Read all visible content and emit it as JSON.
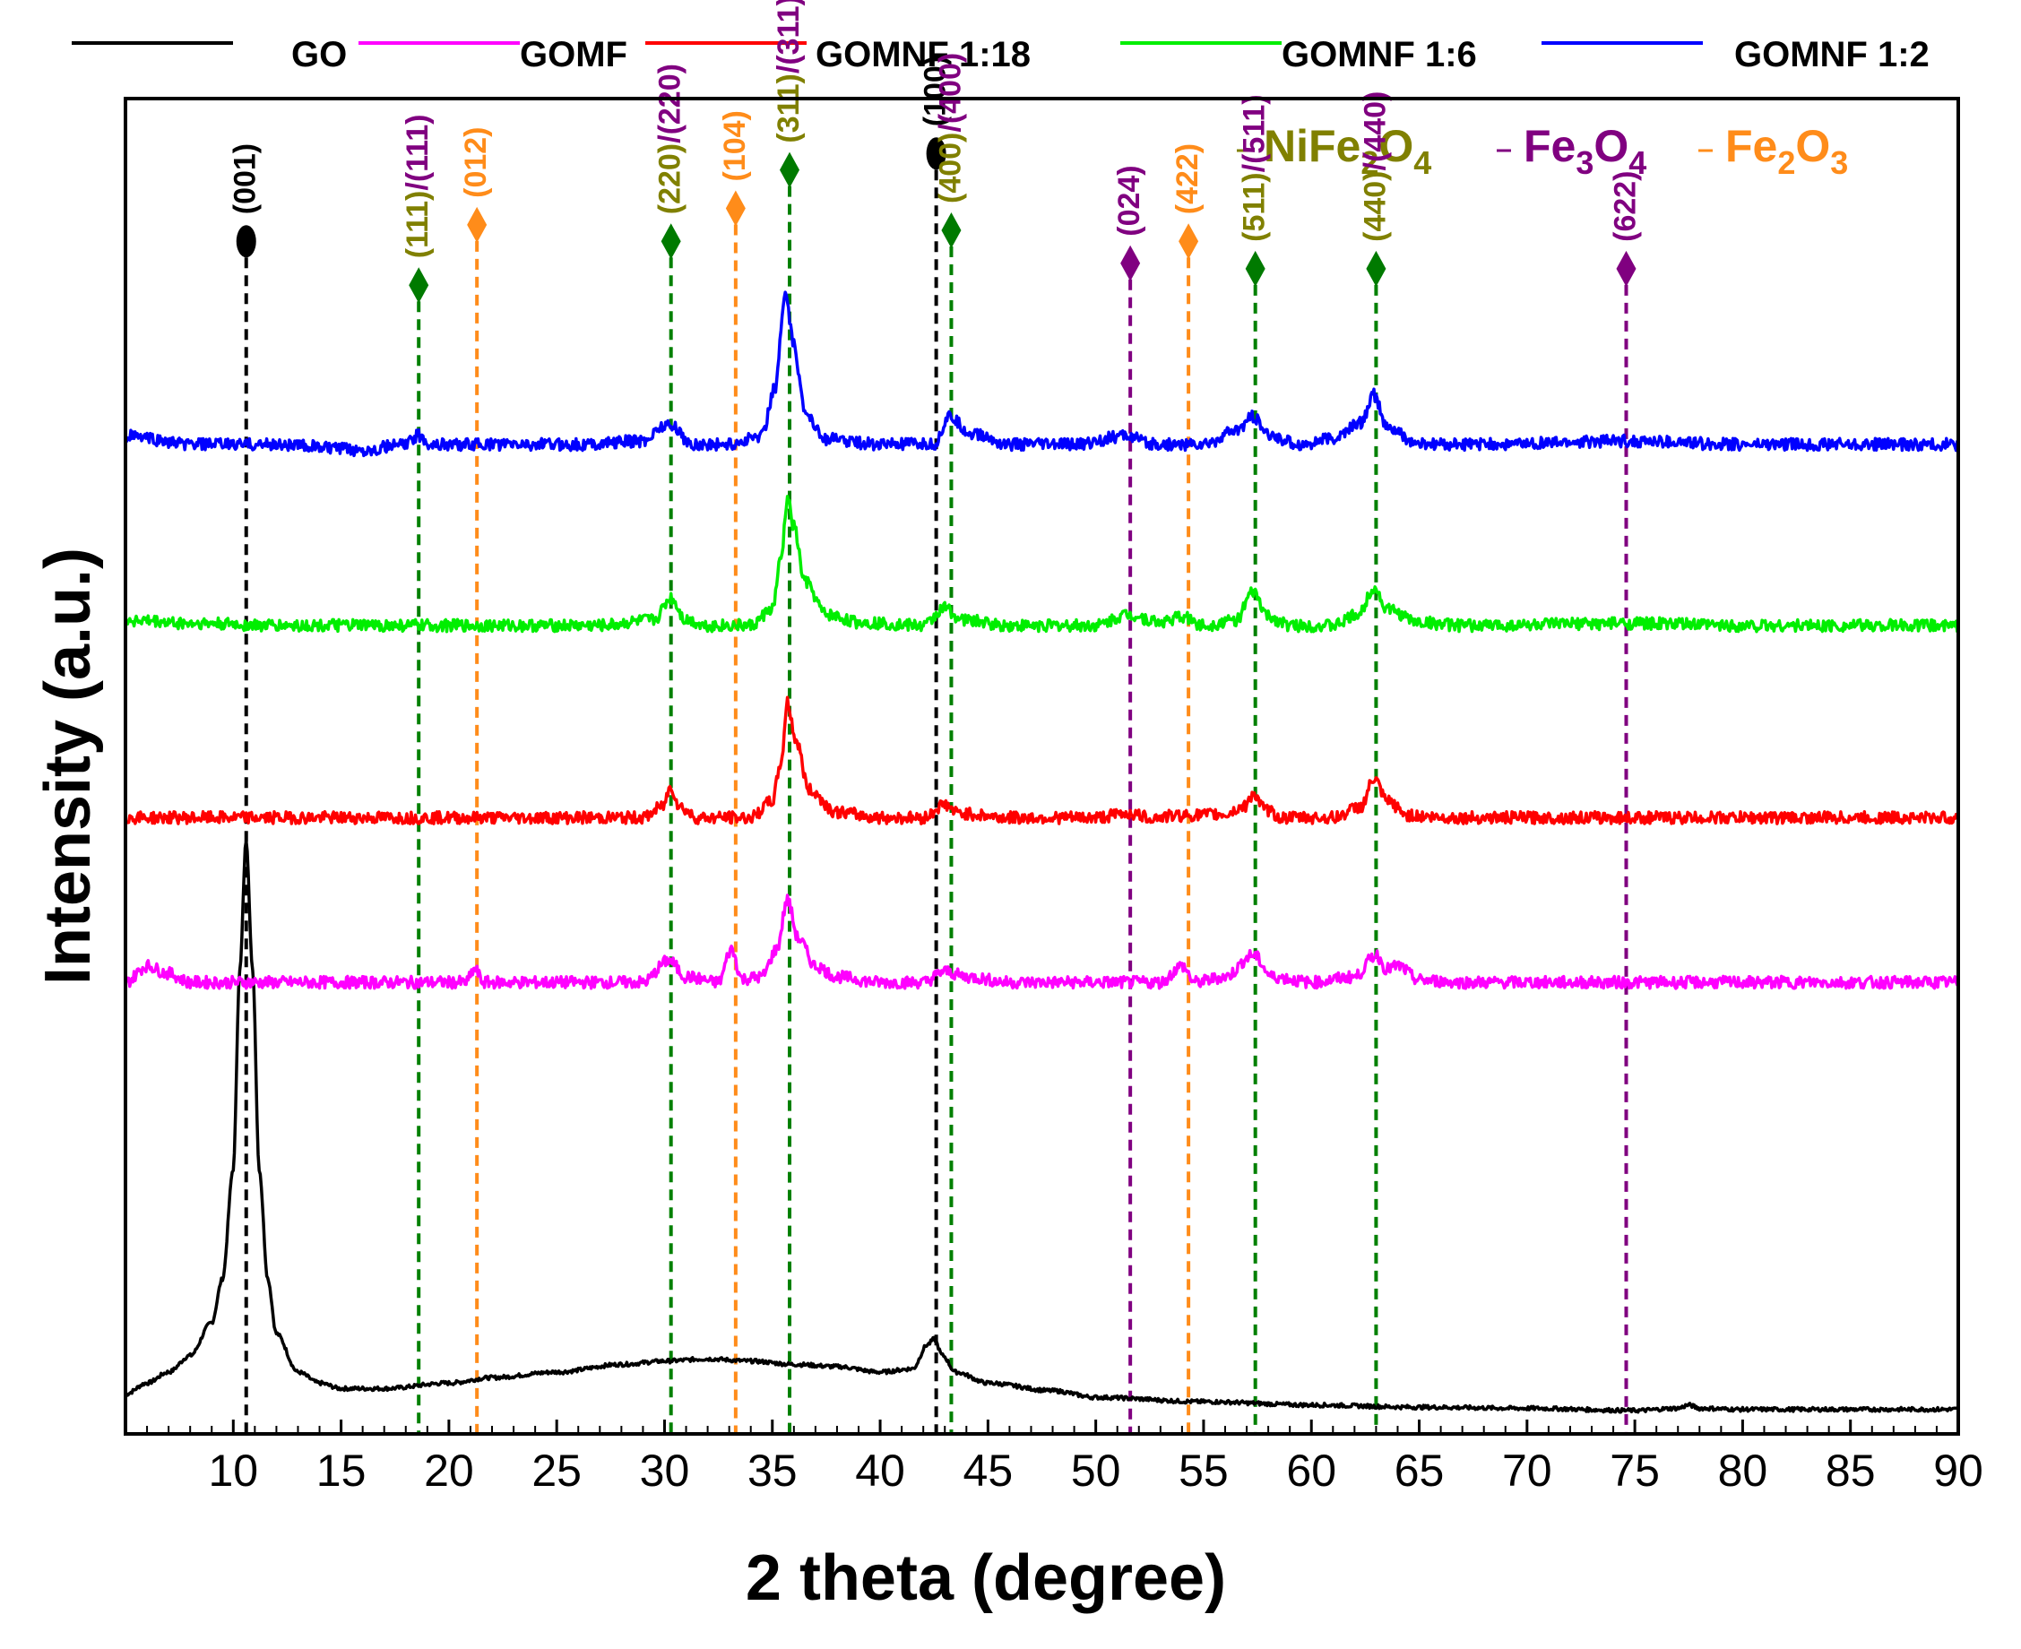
{
  "chart_data": {
    "type": "line",
    "title": "",
    "xlabel": "2 theta (degree)",
    "ylabel": "Intensity (a.u.)",
    "xlim": [
      5,
      90
    ],
    "ylim": [
      0,
      100
    ],
    "x_ticks": [
      10,
      15,
      20,
      25,
      30,
      35,
      40,
      45,
      50,
      55,
      60,
      65,
      70,
      75,
      80,
      85,
      90
    ],
    "legend_position": "top",
    "series": [
      {
        "name": "GO",
        "color": "#000000",
        "offset": 0.5,
        "points": [
          [
            5,
            1.5
          ],
          [
            6,
            2.5
          ],
          [
            7,
            3.5
          ],
          [
            8,
            5
          ],
          [
            9,
            8
          ],
          [
            9.5,
            12
          ],
          [
            10,
            22
          ],
          [
            10.3,
            40
          ],
          [
            10.6,
            52
          ],
          [
            10.9,
            40
          ],
          [
            11.2,
            22
          ],
          [
            11.6,
            12
          ],
          [
            12,
            7
          ],
          [
            13,
            3.5
          ],
          [
            14,
            2.5
          ],
          [
            15,
            2
          ],
          [
            17,
            2
          ],
          [
            20,
            2.5
          ],
          [
            22,
            3
          ],
          [
            25,
            3.5
          ],
          [
            28,
            4.2
          ],
          [
            30,
            4.5
          ],
          [
            32,
            4.7
          ],
          [
            34,
            4.5
          ],
          [
            36,
            4.2
          ],
          [
            38,
            4
          ],
          [
            40,
            3.5
          ],
          [
            41.5,
            3.8
          ],
          [
            42.2,
            6
          ],
          [
            42.5,
            6.5
          ],
          [
            42.9,
            5
          ],
          [
            43.5,
            3.5
          ],
          [
            45,
            2.5
          ],
          [
            48,
            1.8
          ],
          [
            50,
            1.2
          ],
          [
            55,
            0.8
          ],
          [
            60,
            0.5
          ],
          [
            65,
            0.3
          ],
          [
            70,
            0.2
          ],
          [
            75,
            0
          ],
          [
            77,
            0.2
          ],
          [
            77.5,
            0.5
          ],
          [
            78,
            0.2
          ],
          [
            80,
            0.1
          ],
          [
            85,
            0.1
          ],
          [
            90,
            0.1
          ]
        ],
        "peaks": [
          [
            10.6,
            52
          ],
          [
            42.5,
            6.5
          ]
        ]
      },
      {
        "name": "GOMF",
        "color": "#ff00ff",
        "offset": 39.5,
        "points": [
          [
            5,
            0
          ],
          [
            6,
            1.5
          ],
          [
            7,
            0.8
          ],
          [
            8,
            0
          ],
          [
            12,
            0
          ],
          [
            18,
            0
          ],
          [
            20.8,
            0
          ],
          [
            21.2,
            1.2
          ],
          [
            21.6,
            0
          ],
          [
            24,
            0
          ],
          [
            29,
            0
          ],
          [
            30.2,
            2
          ],
          [
            31,
            0.5
          ],
          [
            32.5,
            0
          ],
          [
            33.1,
            3
          ],
          [
            33.6,
            0.3
          ],
          [
            34.5,
            0.5
          ],
          [
            35.2,
            3
          ],
          [
            35.7,
            7.5
          ],
          [
            36.2,
            4
          ],
          [
            37,
            1.5
          ],
          [
            38,
            0.5
          ],
          [
            40,
            0
          ],
          [
            42,
            0
          ],
          [
            43,
            1
          ],
          [
            44,
            0.5
          ],
          [
            46,
            0
          ],
          [
            50,
            0
          ],
          [
            53,
            0
          ],
          [
            54,
            1.5
          ],
          [
            54.6,
            0
          ],
          [
            56,
            0.5
          ],
          [
            57.3,
            2.5
          ],
          [
            58.2,
            0.5
          ],
          [
            60,
            0
          ],
          [
            62,
            0.5
          ],
          [
            63,
            2.5
          ],
          [
            63.5,
            1.2
          ],
          [
            64,
            1.5
          ],
          [
            65,
            0.2
          ],
          [
            67,
            0
          ],
          [
            90,
            0
          ]
        ],
        "peaks": [
          [
            35.7,
            7.5
          ]
        ]
      },
      {
        "name": "GOMNF 1:18",
        "color": "#ff0000",
        "offset": 54.5,
        "points": [
          [
            5,
            0
          ],
          [
            10,
            0
          ],
          [
            20,
            0
          ],
          [
            29,
            0
          ],
          [
            29.9,
            1
          ],
          [
            30.3,
            2.8
          ],
          [
            30.7,
            1
          ],
          [
            31.5,
            0
          ],
          [
            34,
            0
          ],
          [
            35,
            1.5
          ],
          [
            35.4,
            5
          ],
          [
            35.7,
            10.5
          ],
          [
            36.1,
            7
          ],
          [
            36.7,
            2.5
          ],
          [
            38,
            0.5
          ],
          [
            40,
            0
          ],
          [
            42,
            0
          ],
          [
            43,
            1.2
          ],
          [
            43.6,
            0.4
          ],
          [
            46,
            0
          ],
          [
            50,
            0
          ],
          [
            51.5,
            0.4
          ],
          [
            52.5,
            0
          ],
          [
            54,
            0.2
          ],
          [
            56,
            0.3
          ],
          [
            56.9,
            1
          ],
          [
            57.3,
            2.2
          ],
          [
            57.8,
            0.8
          ],
          [
            58.6,
            0
          ],
          [
            61,
            0
          ],
          [
            62.3,
            1
          ],
          [
            62.9,
            3.5
          ],
          [
            63.5,
            1.5
          ],
          [
            64.5,
            0.2
          ],
          [
            66,
            0
          ],
          [
            90,
            0
          ]
        ],
        "peaks": [
          [
            35.7,
            10.5
          ]
        ]
      },
      {
        "name": "GOMNF 1:6",
        "color": "#00ee00",
        "offset": 72,
        "points": [
          [
            5,
            0.5
          ],
          [
            8,
            0.2
          ],
          [
            12,
            0
          ],
          [
            20,
            0
          ],
          [
            27,
            0
          ],
          [
            29.5,
            0.5
          ],
          [
            30.3,
            2.5
          ],
          [
            31,
            0.5
          ],
          [
            32,
            0
          ],
          [
            34,
            0
          ],
          [
            35,
            1.5
          ],
          [
            35.4,
            6
          ],
          [
            35.7,
            11.5
          ],
          [
            36,
            9
          ],
          [
            36.5,
            4
          ],
          [
            37.5,
            1
          ],
          [
            39,
            0.3
          ],
          [
            42,
            0
          ],
          [
            43,
            1.6
          ],
          [
            43.8,
            0.5
          ],
          [
            46,
            0
          ],
          [
            50,
            0
          ],
          [
            51.5,
            1
          ],
          [
            53,
            0.3
          ],
          [
            54,
            0.8
          ],
          [
            55,
            0
          ],
          [
            56.5,
            0.5
          ],
          [
            57.3,
            3
          ],
          [
            58,
            0.8
          ],
          [
            59,
            0
          ],
          [
            61,
            0
          ],
          [
            62.2,
            1
          ],
          [
            62.9,
            3.5
          ],
          [
            63.5,
            1.5
          ],
          [
            65,
            0.3
          ],
          [
            67,
            0
          ],
          [
            75,
            0.2
          ],
          [
            80,
            0
          ],
          [
            90,
            0
          ]
        ],
        "peaks": [
          [
            35.7,
            11.5
          ]
        ]
      },
      {
        "name": "GOMNF 1:2",
        "color": "#0000ff",
        "offset": 88.5,
        "points": [
          [
            5,
            0.8
          ],
          [
            8,
            0
          ],
          [
            12,
            0
          ],
          [
            16,
            -0.5
          ],
          [
            18,
            0
          ],
          [
            18.6,
            0.8
          ],
          [
            19.2,
            0
          ],
          [
            22,
            0
          ],
          [
            26,
            0
          ],
          [
            29,
            0.3
          ],
          [
            30,
            1.8
          ],
          [
            30.5,
            1.5
          ],
          [
            31.2,
            0
          ],
          [
            33,
            0
          ],
          [
            34.5,
            0.8
          ],
          [
            35.1,
            5
          ],
          [
            35.6,
            13.5
          ],
          [
            36,
            9
          ],
          [
            36.5,
            3
          ],
          [
            37.5,
            0.5
          ],
          [
            40,
            0
          ],
          [
            42.5,
            0
          ],
          [
            43.2,
            2.5
          ],
          [
            44.2,
            1
          ],
          [
            46,
            0
          ],
          [
            49,
            0
          ],
          [
            51.5,
            0.8
          ],
          [
            52.5,
            0
          ],
          [
            55,
            0
          ],
          [
            56.5,
            1.2
          ],
          [
            57.3,
            2.5
          ],
          [
            58,
            0.8
          ],
          [
            59.5,
            0
          ],
          [
            61,
            0.5
          ],
          [
            62.3,
            2
          ],
          [
            62.9,
            4.5
          ],
          [
            63.5,
            1.5
          ],
          [
            65,
            0
          ],
          [
            68,
            0
          ],
          [
            74.5,
            0.3
          ],
          [
            80,
            0
          ],
          [
            90,
            0
          ]
        ],
        "peaks": [
          [
            35.6,
            13.5
          ]
        ]
      }
    ],
    "reference_lines": [
      {
        "x": 10.6,
        "color": "#000000",
        "marker": "ellipse",
        "label": "(001)",
        "label_color": "#000000",
        "top": 107
      },
      {
        "x": 18.6,
        "color": "#008000",
        "marker": "diamond",
        "marker_color": "#007a00",
        "top": 103,
        "label_parts": [
          {
            "text": "(111)",
            "color": "#808000"
          },
          {
            "text": "/(111)",
            "color": "#800080"
          }
        ]
      },
      {
        "x": 21.3,
        "color": "#ff8c1a",
        "marker": "diamond",
        "label": "(012)",
        "label_color": "#ff8c1a",
        "top": 108.5
      },
      {
        "x": 30.3,
        "color": "#008000",
        "marker": "diamond",
        "marker_color": "#007a00",
        "top": 107,
        "label_parts": [
          {
            "text": "(220)",
            "color": "#808000"
          },
          {
            "text": "/(220)",
            "color": "#800080"
          }
        ]
      },
      {
        "x": 33.3,
        "color": "#ff8c1a",
        "marker": "diamond",
        "label": "(104)",
        "label_color": "#ff8c1a",
        "top": 110
      },
      {
        "x": 35.8,
        "color": "#008000",
        "marker": "diamond",
        "marker_color": "#007a00",
        "top": 113.5,
        "label_parts": [
          {
            "text": "(311)",
            "color": "#808000"
          },
          {
            "text": "/(311)",
            "color": "#800080"
          }
        ]
      },
      {
        "x": 42.6,
        "color": "#000000",
        "marker": "ellipse",
        "label": "(100)",
        "label_color": "#000000",
        "top": 115
      },
      {
        "x": 43.3,
        "color": "#008000",
        "marker": "diamond",
        "marker_color": "#007a00",
        "top": 108,
        "label_parts": [
          {
            "text": "(400)",
            "color": "#808000"
          },
          {
            "text": "/(400)",
            "color": "#800080"
          }
        ]
      },
      {
        "x": 51.6,
        "color": "#800080",
        "marker": "diamond",
        "label": "(024)",
        "label_color": "#800080",
        "top": 105
      },
      {
        "x": 54.3,
        "color": "#ff8c1a",
        "marker": "diamond",
        "label": "(422)",
        "label_color": "#ff8c1a",
        "top": 107
      },
      {
        "x": 57.4,
        "color": "#008000",
        "marker": "diamond",
        "marker_color": "#007a00",
        "top": 104.5,
        "label_parts": [
          {
            "text": "(511)",
            "color": "#808000"
          },
          {
            "text": "/(511)",
            "color": "#800080"
          }
        ]
      },
      {
        "x": 63.0,
        "color": "#008000",
        "marker": "diamond",
        "marker_color": "#007a00",
        "top": 104.5,
        "label_parts": [
          {
            "text": "(440)",
            "color": "#808000"
          },
          {
            "text": "/(440)",
            "color": "#800080"
          }
        ]
      },
      {
        "x": 74.6,
        "color": "#800080",
        "marker": "diamond",
        "label": "(622)",
        "label_color": "#800080",
        "top": 104.5
      }
    ],
    "phase_legend": [
      {
        "base": "NiFe",
        "sub1": "2",
        "mid": "O",
        "sub2": "4",
        "color": "#808000"
      },
      {
        "base": "Fe",
        "sub1": "3",
        "mid": "O",
        "sub2": "4",
        "color": "#800080"
      },
      {
        "base": "Fe",
        "sub1": "2",
        "mid": "O",
        "sub2": "3",
        "color": "#ff8c1a"
      }
    ]
  }
}
